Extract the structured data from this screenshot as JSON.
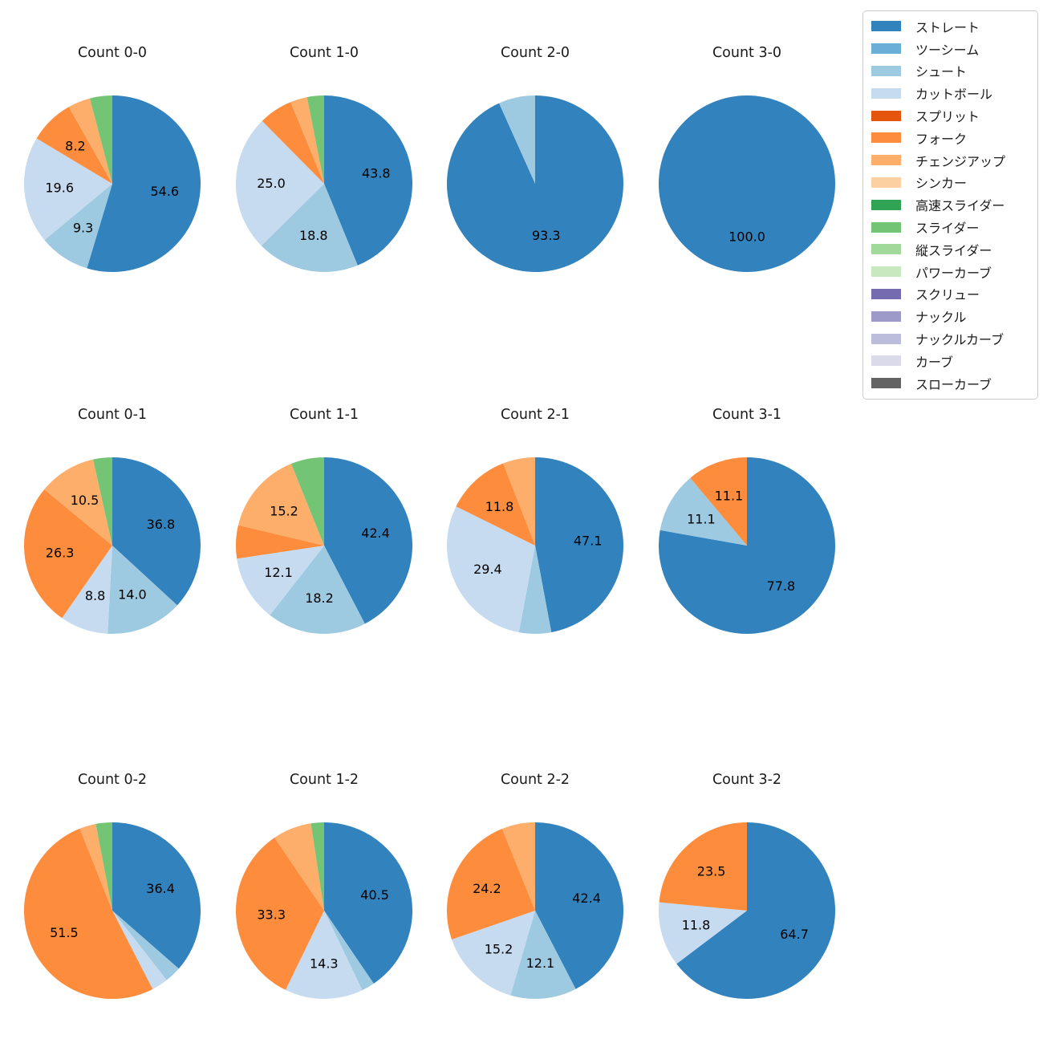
{
  "figure": {
    "background": "#ffffff",
    "title_color": "#1a1a1a",
    "pct_label_color": "#000000",
    "pct_label_min_pct": 8.0,
    "pct_decimals": 1
  },
  "legend": {
    "position": "top-right",
    "border_color": "#cccccc",
    "items": [
      {
        "label": "ストレート",
        "color": "#3182bd"
      },
      {
        "label": "ツーシーム",
        "color": "#6baed6"
      },
      {
        "label": "シュート",
        "color": "#9ecae1"
      },
      {
        "label": "カットボール",
        "color": "#c6dbef"
      },
      {
        "label": "スプリット",
        "color": "#e6550d"
      },
      {
        "label": "フォーク",
        "color": "#fd8d3c"
      },
      {
        "label": "チェンジアップ",
        "color": "#fdae6b"
      },
      {
        "label": "シンカー",
        "color": "#fdd0a2"
      },
      {
        "label": "高速スライダー",
        "color": "#31a354"
      },
      {
        "label": "スライダー",
        "color": "#74c476"
      },
      {
        "label": "縦スライダー",
        "color": "#a1d99b"
      },
      {
        "label": "パワーカーブ",
        "color": "#c7e9c0"
      },
      {
        "label": "スクリュー",
        "color": "#756bb1"
      },
      {
        "label": "ナックル",
        "color": "#9e9ac8"
      },
      {
        "label": "ナックルカーブ",
        "color": "#bcbddc"
      },
      {
        "label": "カーブ",
        "color": "#dadaeb"
      },
      {
        "label": "スローカーブ",
        "color": "#636363"
      }
    ]
  },
  "chart_data": [
    {
      "type": "pie",
      "title": "Count 0-0",
      "start_angle_deg": 90,
      "direction": "clockwise",
      "slices": [
        {
          "label": "ストレート",
          "value": 54.6
        },
        {
          "label": "シュート",
          "value": 9.3
        },
        {
          "label": "カットボール",
          "value": 19.6
        },
        {
          "label": "フォーク",
          "value": 8.2
        },
        {
          "label": "チェンジアップ",
          "value": 4.1
        },
        {
          "label": "スライダー",
          "value": 4.1
        }
      ]
    },
    {
      "type": "pie",
      "title": "Count 1-0",
      "start_angle_deg": 90,
      "direction": "clockwise",
      "slices": [
        {
          "label": "ストレート",
          "value": 43.8
        },
        {
          "label": "シュート",
          "value": 18.8
        },
        {
          "label": "カットボール",
          "value": 25.0
        },
        {
          "label": "フォーク",
          "value": 6.2
        },
        {
          "label": "チェンジアップ",
          "value": 3.1
        },
        {
          "label": "スライダー",
          "value": 3.1
        }
      ]
    },
    {
      "type": "pie",
      "title": "Count 2-0",
      "start_angle_deg": 90,
      "direction": "clockwise",
      "slices": [
        {
          "label": "ストレート",
          "value": 93.3
        },
        {
          "label": "シュート",
          "value": 6.7
        }
      ]
    },
    {
      "type": "pie",
      "title": "Count 3-0",
      "start_angle_deg": 90,
      "direction": "clockwise",
      "slices": [
        {
          "label": "ストレート",
          "value": 100.0
        }
      ]
    },
    {
      "type": "pie",
      "title": "Count 0-1",
      "start_angle_deg": 90,
      "direction": "clockwise",
      "slices": [
        {
          "label": "ストレート",
          "value": 36.8
        },
        {
          "label": "シュート",
          "value": 14.0
        },
        {
          "label": "カットボール",
          "value": 8.8
        },
        {
          "label": "フォーク",
          "value": 26.3
        },
        {
          "label": "チェンジアップ",
          "value": 10.5
        },
        {
          "label": "スライダー",
          "value": 3.5
        }
      ]
    },
    {
      "type": "pie",
      "title": "Count 1-1",
      "start_angle_deg": 90,
      "direction": "clockwise",
      "slices": [
        {
          "label": "ストレート",
          "value": 42.4
        },
        {
          "label": "シュート",
          "value": 18.2
        },
        {
          "label": "カットボール",
          "value": 12.1
        },
        {
          "label": "フォーク",
          "value": 6.1
        },
        {
          "label": "チェンジアップ",
          "value": 15.2
        },
        {
          "label": "スライダー",
          "value": 6.1
        }
      ]
    },
    {
      "type": "pie",
      "title": "Count 2-1",
      "start_angle_deg": 90,
      "direction": "clockwise",
      "slices": [
        {
          "label": "ストレート",
          "value": 47.1
        },
        {
          "label": "シュート",
          "value": 5.9
        },
        {
          "label": "カットボール",
          "value": 29.4
        },
        {
          "label": "フォーク",
          "value": 11.8
        },
        {
          "label": "チェンジアップ",
          "value": 5.9
        }
      ]
    },
    {
      "type": "pie",
      "title": "Count 3-1",
      "start_angle_deg": 90,
      "direction": "clockwise",
      "slices": [
        {
          "label": "ストレート",
          "value": 77.8
        },
        {
          "label": "シュート",
          "value": 11.1
        },
        {
          "label": "フォーク",
          "value": 11.1
        }
      ]
    },
    {
      "type": "pie",
      "title": "Count 0-2",
      "start_angle_deg": 90,
      "direction": "clockwise",
      "slices": [
        {
          "label": "ストレート",
          "value": 36.4
        },
        {
          "label": "シュート",
          "value": 3.0
        },
        {
          "label": "カットボール",
          "value": 3.0
        },
        {
          "label": "フォーク",
          "value": 51.5
        },
        {
          "label": "チェンジアップ",
          "value": 3.0
        },
        {
          "label": "スライダー",
          "value": 3.0
        }
      ]
    },
    {
      "type": "pie",
      "title": "Count 1-2",
      "start_angle_deg": 90,
      "direction": "clockwise",
      "slices": [
        {
          "label": "ストレート",
          "value": 40.5
        },
        {
          "label": "シュート",
          "value": 2.4
        },
        {
          "label": "カットボール",
          "value": 14.3
        },
        {
          "label": "フォーク",
          "value": 33.3
        },
        {
          "label": "チェンジアップ",
          "value": 7.1
        },
        {
          "label": "スライダー",
          "value": 2.4
        }
      ]
    },
    {
      "type": "pie",
      "title": "Count 2-2",
      "start_angle_deg": 90,
      "direction": "clockwise",
      "slices": [
        {
          "label": "ストレート",
          "value": 42.4
        },
        {
          "label": "シュート",
          "value": 12.1
        },
        {
          "label": "カットボール",
          "value": 15.2
        },
        {
          "label": "フォーク",
          "value": 24.2
        },
        {
          "label": "チェンジアップ",
          "value": 6.1
        }
      ]
    },
    {
      "type": "pie",
      "title": "Count 3-2",
      "start_angle_deg": 90,
      "direction": "clockwise",
      "slices": [
        {
          "label": "ストレート",
          "value": 64.7
        },
        {
          "label": "カットボール",
          "value": 11.8
        },
        {
          "label": "フォーク",
          "value": 23.5
        }
      ]
    }
  ]
}
